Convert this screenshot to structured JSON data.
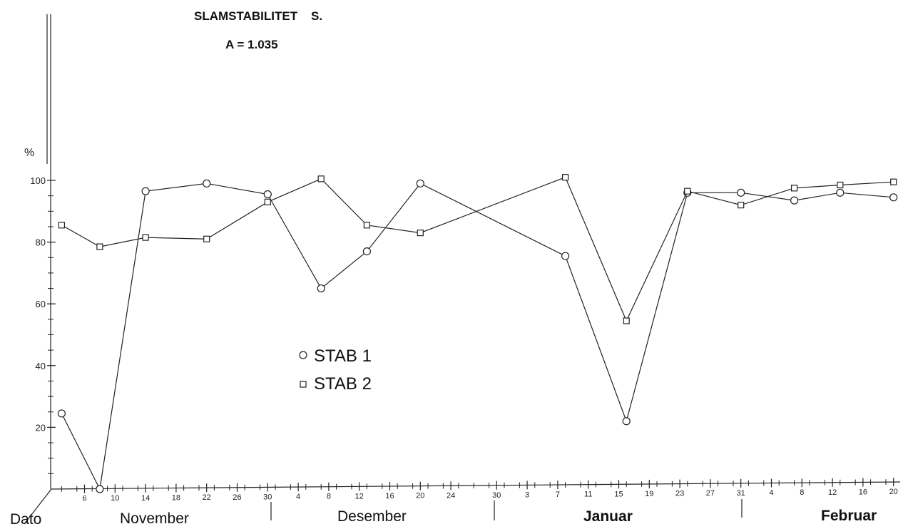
{
  "chart_data": {
    "type": "line",
    "title": "SLAMSTABILITET    S.",
    "subtitle": "A = 1.035",
    "ylabel": "%",
    "xlabel": "Dato",
    "ylim": [
      0,
      100
    ],
    "y_ticks": [
      "20",
      "40",
      "60",
      "80",
      "100"
    ],
    "x_tick_labels": [
      "6",
      "10",
      "14",
      "18",
      "22",
      "26",
      "30",
      "4",
      "8",
      "12",
      "16",
      "20",
      "24",
      "30",
      "3",
      "7",
      "11",
      "15",
      "19",
      "23",
      "27",
      "31",
      "4",
      "8",
      "12",
      "16",
      "20"
    ],
    "months": [
      "November",
      "Desember",
      "Januar",
      "Februar"
    ],
    "series": [
      {
        "name": "STAB 1",
        "marker": "circle",
        "points": [
          {
            "date": "Nov 3",
            "y": 24.5
          },
          {
            "date": "Nov 8",
            "y": 0
          },
          {
            "date": "Nov 14",
            "y": 96.5
          },
          {
            "date": "Nov 22",
            "y": 99
          },
          {
            "date": "Nov 30",
            "y": 95.5
          },
          {
            "date": "Dec 7",
            "y": 65
          },
          {
            "date": "Dec 13",
            "y": 77
          },
          {
            "date": "Dec 20",
            "y": 99
          },
          {
            "date": "Jan 8",
            "y": 75.5
          },
          {
            "date": "Jan 16",
            "y": 22
          },
          {
            "date": "Jan 24",
            "y": 96
          },
          {
            "date": "Jan 31",
            "y": 96
          },
          {
            "date": "Feb 7",
            "y": 93.5
          },
          {
            "date": "Feb 13",
            "y": 96
          },
          {
            "date": "Feb 20",
            "y": 94.5
          }
        ]
      },
      {
        "name": "STAB 2",
        "marker": "square",
        "points": [
          {
            "date": "Nov 3",
            "y": 85.5
          },
          {
            "date": "Nov 8",
            "y": 78.5
          },
          {
            "date": "Nov 14",
            "y": 81.5
          },
          {
            "date": "Nov 22",
            "y": 81
          },
          {
            "date": "Nov 30",
            "y": 93
          },
          {
            "date": "Dec 7",
            "y": 100.5
          },
          {
            "date": "Dec 13",
            "y": 85.5
          },
          {
            "date": "Dec 20",
            "y": 83
          },
          {
            "date": "Jan 8",
            "y": 101
          },
          {
            "date": "Jan 16",
            "y": 54.5
          },
          {
            "date": "Jan 24",
            "y": 96.5
          },
          {
            "date": "Jan 31",
            "y": 92
          },
          {
            "date": "Feb 7",
            "y": 97.5
          },
          {
            "date": "Feb 13",
            "y": 98.5
          },
          {
            "date": "Feb 20",
            "y": 99.5
          }
        ]
      }
    ]
  }
}
